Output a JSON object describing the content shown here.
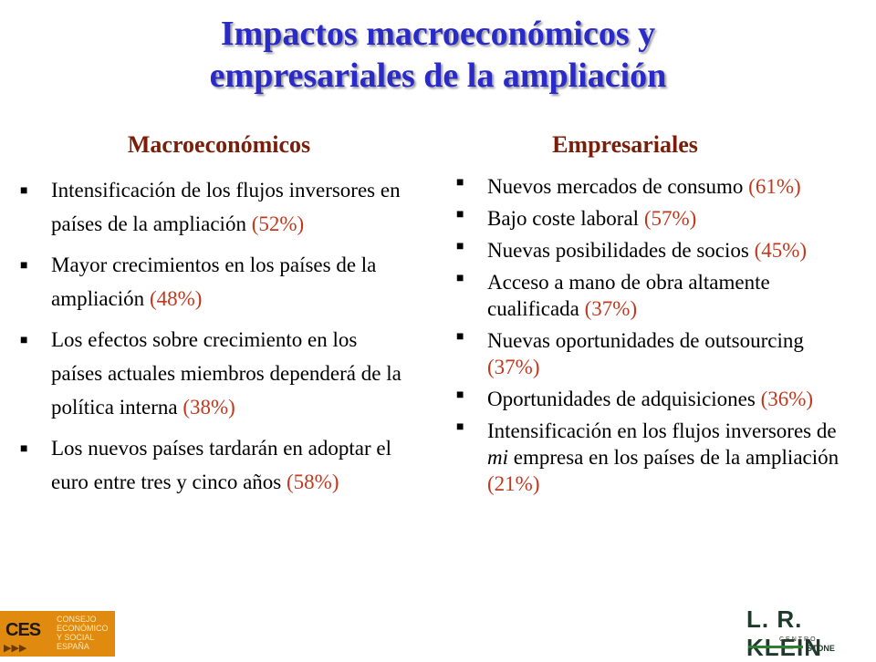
{
  "title_line1": "Impactos macroeconómicos y",
  "title_line2": "empresariales de la ampliación",
  "left": {
    "heading": "Macroeconómicos",
    "items": [
      {
        "text": "Intensificación de los flujos inversores en países de la ampliación",
        "pct": "(52%)"
      },
      {
        "text": "Mayor crecimientos en los países de la ampliación",
        "pct": "(48%)"
      },
      {
        "text": "Los efectos sobre crecimiento en los países actuales miembros dependerá de la política interna",
        "pct": "(38%)"
      },
      {
        "text": "Los nuevos países tardarán en adoptar el euro entre tres y cinco años",
        "pct": "(58%)"
      }
    ]
  },
  "right": {
    "heading": "Empresariales",
    "items": [
      {
        "text": "Nuevos mercados de consumo",
        "pct": "(61%)"
      },
      {
        "text": "Bajo coste laboral",
        "pct": "(57%)"
      },
      {
        "text": "Nuevas posibilidades de socios",
        "pct": "(45%)"
      },
      {
        "text": "Acceso a mano de obra altamente cualificada",
        "pct": "(37%)"
      },
      {
        "text": "Nuevas oportunidades de outsourcing",
        "pct": "(37%)"
      },
      {
        "text": "Oportunidades de adquisiciones",
        "pct": "(36%)"
      },
      {
        "pre": "Intensificación en los flujos inversores de",
        "ital": "mi",
        "post": "empresa en los países de la ampliación",
        "pct": "(21%)"
      }
    ]
  },
  "logos": {
    "ces": {
      "abbr": "CES",
      "line1": "CONSEJO",
      "line2": "ECONÓMICO",
      "line3": "Y SOCIAL",
      "line4": "ESPAÑA"
    },
    "klein": {
      "name": "L. R. KLEIN",
      "centro": "CENTRO",
      "stone": "STONE"
    }
  },
  "colors": {
    "title": "#2a2ac8",
    "heading": "#7a1e0a",
    "percent": "#c0391f"
  }
}
